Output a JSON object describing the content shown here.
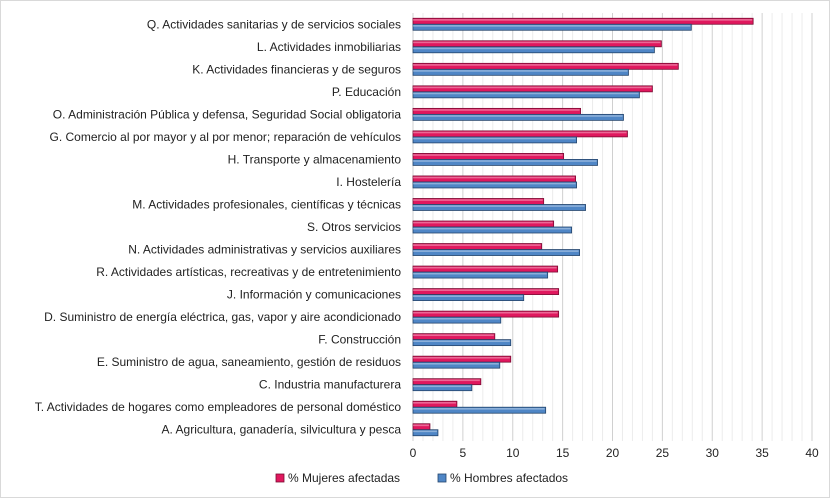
{
  "chart_data": {
    "type": "bar",
    "orientation": "horizontal",
    "title": "",
    "xlabel": "",
    "ylabel": "",
    "xlim": [
      0,
      40
    ],
    "xticks": [
      0,
      5,
      10,
      15,
      20,
      25,
      30,
      35,
      40
    ],
    "grid": true,
    "legend_position": "bottom",
    "categories": [
      "Q. Actividades sanitarias y de servicios sociales",
      "L. Actividades inmobiliarias",
      "K. Actividades financieras y de seguros",
      "P. Educación",
      "O. Administración Pública y defensa, Seguridad Social obligatoria",
      "G. Comercio al por mayor y al por menor; reparación de vehículos",
      "H. Transporte y almacenamiento",
      "I. Hostelería",
      "M. Actividades profesionales, científicas y técnicas",
      "S. Otros servicios",
      "N. Actividades administrativas y servicios auxiliares",
      "R. Actividades artísticas, recreativas y de entretenimiento",
      "J. Información y comunicaciones",
      "D. Suministro de energía eléctrica, gas, vapor y aire acondicionado",
      "F. Construcción",
      "E. Suministro de agua, saneamiento, gestión de residuos",
      "C. Industria manufacturera",
      "T. Actividades de hogares como empleadores de personal doméstico",
      "A. Agricultura, ganadería, silvicultura y pesca"
    ],
    "series": [
      {
        "name": "% Mujeres afectadas",
        "color": "#e0185e",
        "values": [
          34.1,
          24.9,
          26.6,
          24.0,
          16.8,
          21.5,
          15.1,
          16.3,
          13.1,
          14.1,
          12.9,
          14.5,
          14.6,
          14.6,
          8.2,
          9.8,
          6.8,
          4.4,
          1.7
        ]
      },
      {
        "name": "% Hombres afectados",
        "color": "#4f86c6",
        "values": [
          27.9,
          24.2,
          21.6,
          22.7,
          21.1,
          16.4,
          18.5,
          16.4,
          17.3,
          15.9,
          16.7,
          13.5,
          11.1,
          8.8,
          9.8,
          8.7,
          5.9,
          13.3,
          2.5
        ]
      }
    ]
  }
}
